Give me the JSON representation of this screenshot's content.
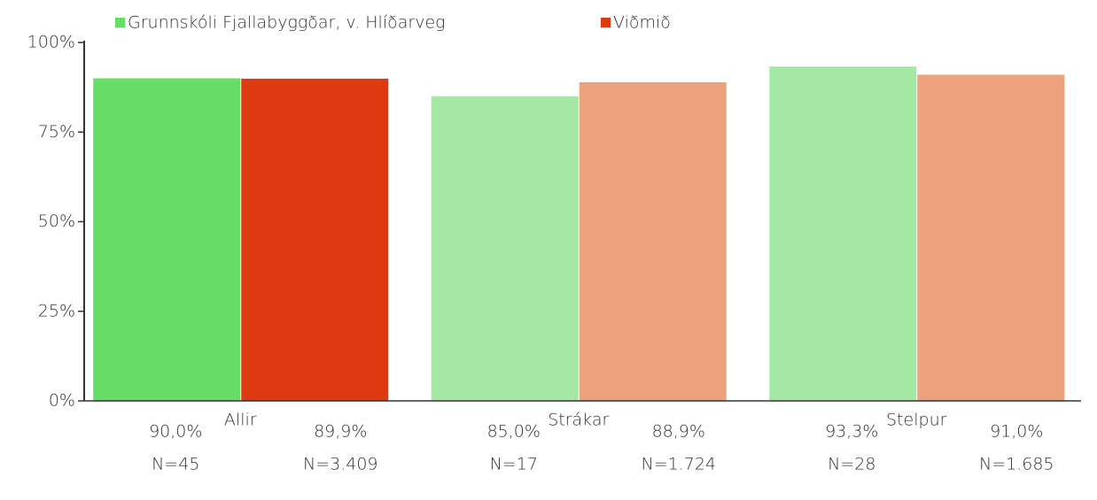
{
  "chart_data": {
    "type": "bar",
    "categories": [
      "Allir",
      "Strákar",
      "Stelpur"
    ],
    "series": [
      {
        "name": "Grunnskóli Fjallabyggðar, v. Hlíðarveg",
        "color": "#66dd66",
        "colors": [
          "#66dd66",
          "#a3e9a3",
          "#a3e9a3"
        ],
        "values": [
          90.0,
          85.0,
          93.3
        ],
        "value_labels": [
          "90,0%",
          "85,0%",
          "93,3%"
        ],
        "n_labels": [
          "N=45",
          "N=17",
          "N=28"
        ]
      },
      {
        "name": "Viðmið",
        "color": "#dd3a12",
        "colors": [
          "#dd3a12",
          "#eea27c",
          "#eea27c"
        ],
        "values": [
          89.9,
          88.9,
          91.0
        ],
        "value_labels": [
          "89,9%",
          "88,9%",
          "91,0%"
        ],
        "n_labels": [
          "N=3.409",
          "N=1.724",
          "N=1.685"
        ]
      }
    ],
    "ylim": [
      0,
      100
    ],
    "yticks": [
      {
        "value": 0,
        "label": "0%"
      },
      {
        "value": 25,
        "label": "25%"
      },
      {
        "value": 50,
        "label": "50%"
      },
      {
        "value": 75,
        "label": "75%"
      },
      {
        "value": 100,
        "label": "100%"
      }
    ]
  }
}
